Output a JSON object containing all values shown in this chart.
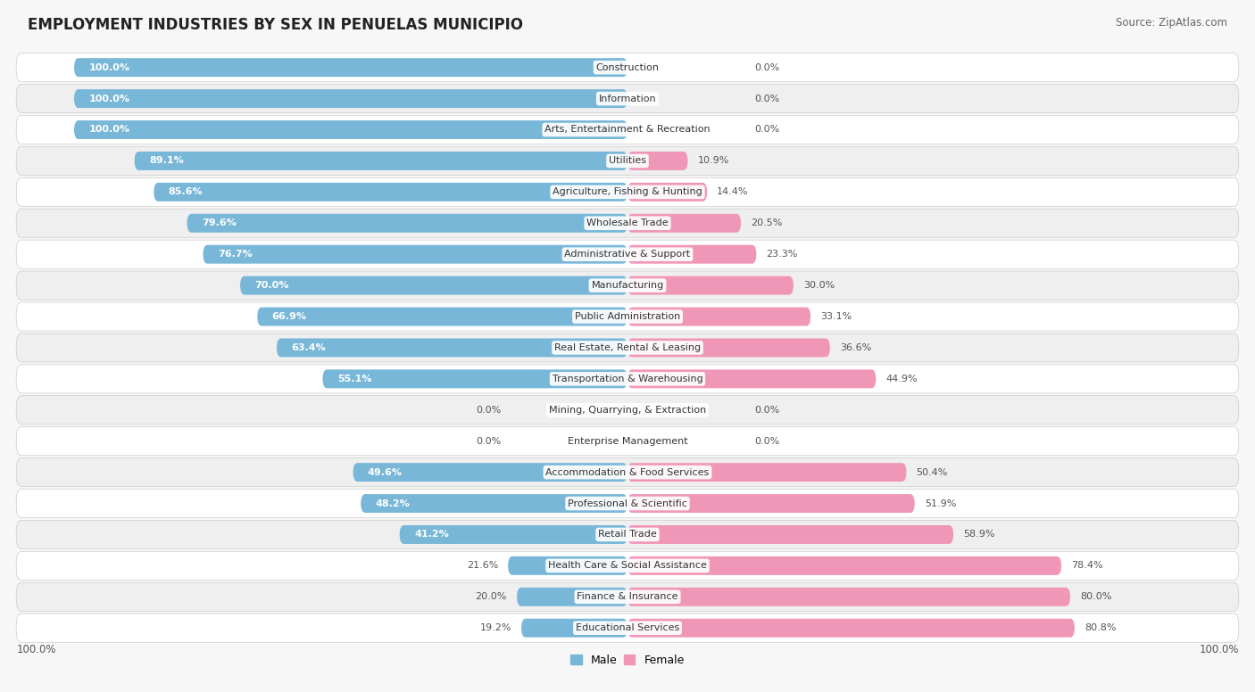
{
  "title": "EMPLOYMENT INDUSTRIES BY SEX IN PENUELAS MUNICIPIO",
  "source": "Source: ZipAtlas.com",
  "categories": [
    "Construction",
    "Information",
    "Arts, Entertainment & Recreation",
    "Utilities",
    "Agriculture, Fishing & Hunting",
    "Wholesale Trade",
    "Administrative & Support",
    "Manufacturing",
    "Public Administration",
    "Real Estate, Rental & Leasing",
    "Transportation & Warehousing",
    "Mining, Quarrying, & Extraction",
    "Enterprise Management",
    "Accommodation & Food Services",
    "Professional & Scientific",
    "Retail Trade",
    "Health Care & Social Assistance",
    "Finance & Insurance",
    "Educational Services"
  ],
  "male": [
    100.0,
    100.0,
    100.0,
    89.1,
    85.6,
    79.6,
    76.7,
    70.0,
    66.9,
    63.4,
    55.1,
    0.0,
    0.0,
    49.6,
    48.2,
    41.2,
    21.6,
    20.0,
    19.2
  ],
  "female": [
    0.0,
    0.0,
    0.0,
    10.9,
    14.4,
    20.5,
    23.3,
    30.0,
    33.1,
    36.6,
    44.9,
    0.0,
    0.0,
    50.4,
    51.9,
    58.9,
    78.4,
    80.0,
    80.8
  ],
  "male_color": "#78b7d8",
  "female_color": "#f097b8",
  "bg_color": "#f7f7f7",
  "row_color_even": "#ffffff",
  "row_color_odd": "#efefef",
  "text_color": "#333333",
  "pct_color_outside": "#555555",
  "pct_color_inside": "#ffffff",
  "title_fontsize": 12,
  "source_fontsize": 8.5,
  "cat_fontsize": 8.0,
  "pct_fontsize": 8.0
}
